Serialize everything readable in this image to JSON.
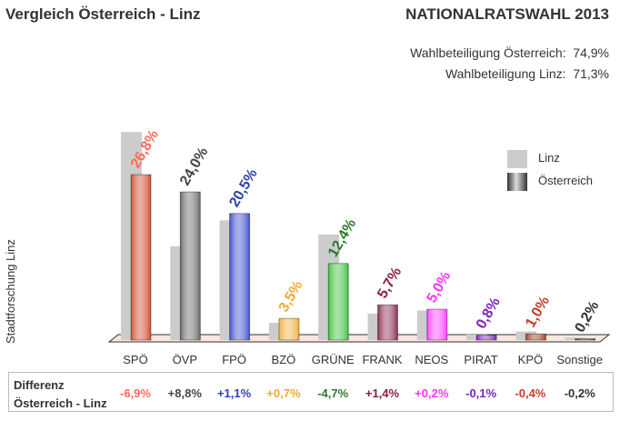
{
  "title": "Vergleich Österreich - Linz",
  "subtitle": "NATIONALRATSWAHL 2013",
  "turnout": [
    {
      "label": "Wahlbeteiligung Österreich:",
      "value": "74,9%"
    },
    {
      "label": "Wahlbeteiligung Linz:",
      "value": "71,3%"
    }
  ],
  "source_label": "Stadtforschung Linz",
  "diff_label_line1": "Differenz",
  "diff_label_line2": "Österreich - Linz",
  "chart_data": {
    "type": "bar",
    "categories": [
      "SPÖ",
      "ÖVP",
      "FPÖ",
      "BZÖ",
      "GRÜNE",
      "FRANK",
      "NEOS",
      "PIRAT",
      "KPÖ",
      "Sonstige"
    ],
    "series": [
      {
        "name": "Linz",
        "values": [
          33.7,
          15.2,
          19.4,
          2.8,
          17.1,
          4.3,
          4.8,
          0.9,
          1.4,
          0.4
        ],
        "color": "#cccccc"
      },
      {
        "name": "Österreich",
        "values": [
          26.8,
          24.0,
          20.5,
          3.5,
          12.4,
          5.7,
          5.0,
          0.8,
          1.0,
          0.2
        ]
      }
    ],
    "data_labels": [
      "26,8%",
      "24,0%",
      "20,5%",
      "3,5%",
      "12,4%",
      "5,7%",
      "5,0%",
      "0,8%",
      "1,0%",
      "0,2%"
    ],
    "differences": [
      "-6,9%",
      "+8,8%",
      "+1,1%",
      "+0,7%",
      "-4,7%",
      "+1,4%",
      "+0,2%",
      "-0,1%",
      "-0,4%",
      "-0,2%"
    ],
    "party_colors": [
      "#ff6a5a",
      "#444444",
      "#3040b0",
      "#f5a830",
      "#2a7a2a",
      "#8a2040",
      "#ff33ff",
      "#8020c0",
      "#c83a28",
      "#333333"
    ],
    "bar_colors": [
      "#d04a30",
      "#6a6a6a",
      "#4050d0",
      "#f0b040",
      "#40c040",
      "#8a2a50",
      "#ff40ff",
      "#8020c0",
      "#a04020",
      "#444444"
    ],
    "legend_position": "right",
    "ylim": [
      0,
      35
    ],
    "grid": false
  }
}
